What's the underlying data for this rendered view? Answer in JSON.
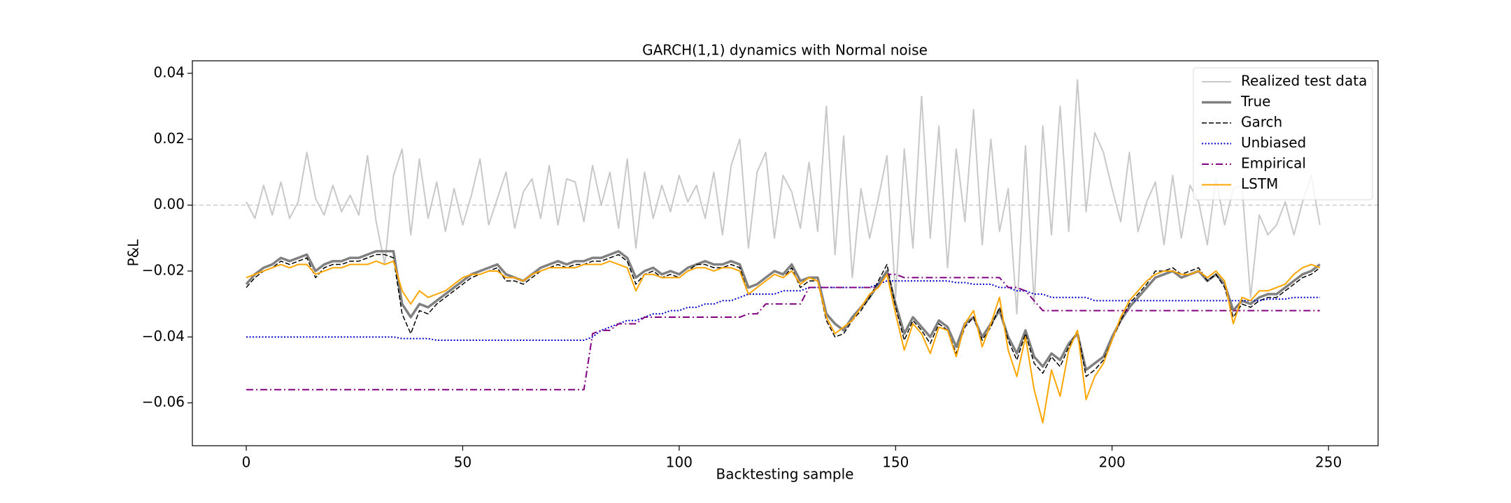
{
  "chart_data": {
    "type": "line",
    "title": "GARCH(1,1) dynamics with Normal noise",
    "xlabel": "Backtesting sample",
    "ylabel": "P&L",
    "xlim": [
      -12.45,
      261.45
    ],
    "ylim": [
      -0.073,
      0.0438
    ],
    "xticks": [
      0,
      50,
      100,
      150,
      200,
      250
    ],
    "yticks": [
      {
        "value": -0.06,
        "label": "−0.06"
      },
      {
        "value": -0.04,
        "label": "−0.04"
      },
      {
        "value": -0.02,
        "label": "−0.02"
      },
      {
        "value": 0,
        "label": "0.00"
      },
      0.02,
      0.04
    ],
    "hlines": [
      0
    ],
    "legend": "upper right",
    "x": [
      0,
      2,
      4,
      6,
      8,
      10,
      12,
      14,
      16,
      18,
      20,
      22,
      24,
      26,
      28,
      30,
      32,
      34,
      36,
      38,
      40,
      42,
      44,
      46,
      48,
      50,
      52,
      54,
      56,
      58,
      60,
      62,
      64,
      66,
      68,
      70,
      72,
      74,
      76,
      78,
      80,
      82,
      84,
      86,
      88,
      90,
      92,
      94,
      96,
      98,
      100,
      102,
      104,
      106,
      108,
      110,
      112,
      114,
      116,
      118,
      120,
      122,
      124,
      126,
      128,
      130,
      132,
      134,
      136,
      138,
      140,
      142,
      144,
      146,
      148,
      150,
      152,
      154,
      156,
      158,
      160,
      162,
      164,
      166,
      168,
      170,
      172,
      174,
      176,
      178,
      180,
      182,
      184,
      186,
      188,
      190,
      192,
      194,
      196,
      198,
      200,
      202,
      204,
      206,
      208,
      210,
      212,
      214,
      216,
      218,
      220,
      222,
      224,
      226,
      228,
      230,
      232,
      234,
      236,
      238,
      240,
      242,
      244,
      246,
      248
    ],
    "series": [
      {
        "name": "Realized test data",
        "color": "#c8c8c8",
        "linestyle": "solid",
        "values": [
          0.001,
          -0.004,
          0.006,
          -0.003,
          0.007,
          -0.004,
          0.001,
          0.016,
          0.002,
          -0.003,
          0.006,
          -0.002,
          0.003,
          -0.003,
          0.015,
          -0.005,
          -0.018,
          0.009,
          0.017,
          -0.009,
          0.014,
          -0.004,
          0.007,
          -0.008,
          0.005,
          -0.006,
          0.003,
          0.014,
          -0.006,
          0.002,
          0.01,
          -0.007,
          0.004,
          0.008,
          -0.004,
          0.012,
          -0.006,
          0.008,
          0.007,
          -0.005,
          0.012,
          0.0,
          0.01,
          -0.007,
          0.014,
          -0.013,
          0.01,
          -0.004,
          0.006,
          -0.002,
          0.009,
          0.001,
          0.006,
          -0.004,
          0.01,
          -0.009,
          0.012,
          0.02,
          -0.013,
          0.01,
          0.016,
          -0.01,
          0.009,
          0.004,
          -0.007,
          0.013,
          -0.008,
          0.03,
          -0.015,
          0.021,
          -0.022,
          0.005,
          -0.01,
          0.002,
          0.015,
          -0.028,
          0.017,
          -0.013,
          0.033,
          -0.01,
          0.024,
          -0.019,
          0.017,
          -0.005,
          0.029,
          -0.012,
          0.02,
          -0.008,
          0.005,
          -0.033,
          0.018,
          -0.03,
          0.024,
          -0.009,
          0.03,
          -0.008,
          0.038,
          -0.002,
          0.022,
          0.016,
          0.005,
          -0.005,
          0.016,
          -0.008,
          0.001,
          0.007,
          -0.012,
          0.009,
          -0.01,
          0.006,
          0.001,
          -0.012,
          0.008,
          -0.006,
          0.005,
          0.006,
          -0.028,
          -0.003,
          -0.009,
          -0.006,
          0.001,
          -0.009,
          0.001,
          0.009,
          -0.006
        ]
      },
      {
        "name": "True",
        "color": "#808080",
        "linestyle": "solid",
        "values": [
          -0.024,
          -0.021,
          -0.019,
          -0.018,
          -0.016,
          -0.017,
          -0.016,
          -0.015,
          -0.02,
          -0.018,
          -0.017,
          -0.017,
          -0.016,
          -0.016,
          -0.015,
          -0.014,
          -0.014,
          -0.014,
          -0.03,
          -0.034,
          -0.03,
          -0.031,
          -0.029,
          -0.027,
          -0.025,
          -0.023,
          -0.021,
          -0.02,
          -0.019,
          -0.018,
          -0.021,
          -0.022,
          -0.023,
          -0.021,
          -0.019,
          -0.018,
          -0.017,
          -0.018,
          -0.017,
          -0.017,
          -0.016,
          -0.016,
          -0.015,
          -0.014,
          -0.016,
          -0.022,
          -0.02,
          -0.019,
          -0.021,
          -0.02,
          -0.021,
          -0.019,
          -0.018,
          -0.017,
          -0.018,
          -0.018,
          -0.017,
          -0.018,
          -0.025,
          -0.024,
          -0.022,
          -0.02,
          -0.021,
          -0.018,
          -0.023,
          -0.022,
          -0.022,
          -0.033,
          -0.036,
          -0.038,
          -0.034,
          -0.031,
          -0.028,
          -0.024,
          -0.02,
          -0.03,
          -0.039,
          -0.034,
          -0.037,
          -0.04,
          -0.035,
          -0.037,
          -0.043,
          -0.036,
          -0.034,
          -0.04,
          -0.036,
          -0.032,
          -0.04,
          -0.045,
          -0.038,
          -0.046,
          -0.049,
          -0.045,
          -0.047,
          -0.042,
          -0.039,
          -0.05,
          -0.048,
          -0.046,
          -0.04,
          -0.035,
          -0.031,
          -0.028,
          -0.025,
          -0.022,
          -0.021,
          -0.02,
          -0.022,
          -0.021,
          -0.02,
          -0.023,
          -0.021,
          -0.024,
          -0.032,
          -0.029,
          -0.03,
          -0.028,
          -0.027,
          -0.027,
          -0.025,
          -0.023,
          -0.021,
          -0.02,
          -0.018
        ]
      },
      {
        "name": "Garch",
        "color": "#000000",
        "linestyle": "dashed",
        "values": [
          -0.025,
          -0.022,
          -0.02,
          -0.019,
          -0.017,
          -0.018,
          -0.017,
          -0.016,
          -0.022,
          -0.019,
          -0.018,
          -0.018,
          -0.017,
          -0.017,
          -0.016,
          -0.015,
          -0.015,
          -0.016,
          -0.033,
          -0.039,
          -0.032,
          -0.033,
          -0.03,
          -0.028,
          -0.026,
          -0.024,
          -0.022,
          -0.021,
          -0.02,
          -0.019,
          -0.023,
          -0.023,
          -0.024,
          -0.022,
          -0.02,
          -0.019,
          -0.018,
          -0.019,
          -0.018,
          -0.018,
          -0.017,
          -0.017,
          -0.016,
          -0.015,
          -0.017,
          -0.024,
          -0.021,
          -0.02,
          -0.022,
          -0.021,
          -0.022,
          -0.02,
          -0.018,
          -0.018,
          -0.019,
          -0.019,
          -0.018,
          -0.019,
          -0.027,
          -0.025,
          -0.023,
          -0.021,
          -0.022,
          -0.019,
          -0.025,
          -0.023,
          -0.023,
          -0.035,
          -0.04,
          -0.039,
          -0.035,
          -0.032,
          -0.028,
          -0.023,
          -0.018,
          -0.031,
          -0.041,
          -0.035,
          -0.038,
          -0.042,
          -0.036,
          -0.038,
          -0.045,
          -0.037,
          -0.034,
          -0.041,
          -0.037,
          -0.031,
          -0.041,
          -0.047,
          -0.039,
          -0.048,
          -0.051,
          -0.046,
          -0.049,
          -0.043,
          -0.038,
          -0.052,
          -0.05,
          -0.047,
          -0.041,
          -0.035,
          -0.03,
          -0.027,
          -0.024,
          -0.02,
          -0.02,
          -0.019,
          -0.021,
          -0.02,
          -0.019,
          -0.023,
          -0.021,
          -0.025,
          -0.034,
          -0.03,
          -0.031,
          -0.029,
          -0.028,
          -0.028,
          -0.026,
          -0.024,
          -0.022,
          -0.021,
          -0.019
        ]
      },
      {
        "name": "Unbiased",
        "color": "#0000cc",
        "linestyle": "dotted",
        "values": [
          -0.04,
          -0.04,
          -0.04,
          -0.04,
          -0.04,
          -0.04,
          -0.04,
          -0.04,
          -0.04,
          -0.04,
          -0.04,
          -0.04,
          -0.04,
          -0.04,
          -0.04,
          -0.04,
          -0.04,
          -0.04,
          -0.0405,
          -0.0405,
          -0.0405,
          -0.0405,
          -0.041,
          -0.041,
          -0.041,
          -0.041,
          -0.041,
          -0.041,
          -0.041,
          -0.041,
          -0.041,
          -0.041,
          -0.041,
          -0.041,
          -0.041,
          -0.041,
          -0.041,
          -0.041,
          -0.041,
          -0.041,
          -0.04,
          -0.038,
          -0.037,
          -0.036,
          -0.035,
          -0.035,
          -0.034,
          -0.033,
          -0.033,
          -0.032,
          -0.032,
          -0.031,
          -0.031,
          -0.03,
          -0.03,
          -0.029,
          -0.029,
          -0.028,
          -0.027,
          -0.027,
          -0.027,
          -0.027,
          -0.026,
          -0.026,
          -0.026,
          -0.025,
          -0.025,
          -0.025,
          -0.025,
          -0.025,
          -0.025,
          -0.025,
          -0.025,
          -0.024,
          -0.023,
          -0.023,
          -0.023,
          -0.023,
          -0.023,
          -0.023,
          -0.023,
          -0.023,
          -0.0235,
          -0.0235,
          -0.024,
          -0.024,
          -0.024,
          -0.025,
          -0.025,
          -0.026,
          -0.026,
          -0.027,
          -0.027,
          -0.028,
          -0.028,
          -0.028,
          -0.028,
          -0.028,
          -0.029,
          -0.029,
          -0.029,
          -0.029,
          -0.029,
          -0.029,
          -0.029,
          -0.029,
          -0.029,
          -0.029,
          -0.029,
          -0.029,
          -0.029,
          -0.029,
          -0.029,
          -0.029,
          -0.029,
          -0.029,
          -0.029,
          -0.029,
          -0.0285,
          -0.0285,
          -0.0285,
          -0.028,
          -0.028,
          -0.028,
          -0.028
        ]
      },
      {
        "name": "Empirical",
        "color": "#800080",
        "linestyle": "dashdot",
        "values": [
          -0.056,
          -0.056,
          -0.056,
          -0.056,
          -0.056,
          -0.056,
          -0.056,
          -0.056,
          -0.056,
          -0.056,
          -0.056,
          -0.056,
          -0.056,
          -0.056,
          -0.056,
          -0.056,
          -0.056,
          -0.056,
          -0.056,
          -0.056,
          -0.056,
          -0.056,
          -0.056,
          -0.056,
          -0.056,
          -0.056,
          -0.056,
          -0.056,
          -0.056,
          -0.056,
          -0.056,
          -0.056,
          -0.056,
          -0.056,
          -0.056,
          -0.056,
          -0.056,
          -0.056,
          -0.056,
          -0.056,
          -0.039,
          -0.038,
          -0.038,
          -0.036,
          -0.036,
          -0.036,
          -0.034,
          -0.034,
          -0.034,
          -0.034,
          -0.034,
          -0.034,
          -0.034,
          -0.034,
          -0.034,
          -0.034,
          -0.034,
          -0.034,
          -0.033,
          -0.033,
          -0.03,
          -0.03,
          -0.03,
          -0.03,
          -0.03,
          -0.025,
          -0.025,
          -0.025,
          -0.025,
          -0.025,
          -0.025,
          -0.025,
          -0.025,
          -0.025,
          -0.021,
          -0.021,
          -0.022,
          -0.022,
          -0.022,
          -0.022,
          -0.022,
          -0.022,
          -0.022,
          -0.022,
          -0.022,
          -0.022,
          -0.022,
          -0.022,
          -0.025,
          -0.025,
          -0.026,
          -0.029,
          -0.032,
          -0.032,
          -0.032,
          -0.032,
          -0.032,
          -0.032,
          -0.032,
          -0.032,
          -0.032,
          -0.032,
          -0.032,
          -0.032,
          -0.032,
          -0.032,
          -0.032,
          -0.032,
          -0.032,
          -0.032,
          -0.032,
          -0.032,
          -0.032,
          -0.032,
          -0.032,
          -0.032,
          -0.032,
          -0.032,
          -0.032,
          -0.032,
          -0.032,
          -0.032,
          -0.032,
          -0.032,
          -0.032
        ]
      },
      {
        "name": "LSTM",
        "color": "#ffa500",
        "linestyle": "solid",
        "values": [
          -0.022,
          -0.021,
          -0.02,
          -0.019,
          -0.018,
          -0.019,
          -0.018,
          -0.018,
          -0.021,
          -0.02,
          -0.019,
          -0.019,
          -0.018,
          -0.018,
          -0.018,
          -0.017,
          -0.018,
          -0.017,
          -0.026,
          -0.03,
          -0.026,
          -0.028,
          -0.027,
          -0.026,
          -0.024,
          -0.022,
          -0.021,
          -0.021,
          -0.02,
          -0.02,
          -0.022,
          -0.022,
          -0.023,
          -0.021,
          -0.02,
          -0.019,
          -0.019,
          -0.019,
          -0.019,
          -0.018,
          -0.018,
          -0.018,
          -0.017,
          -0.018,
          -0.019,
          -0.026,
          -0.021,
          -0.021,
          -0.022,
          -0.022,
          -0.022,
          -0.02,
          -0.019,
          -0.019,
          -0.02,
          -0.019,
          -0.019,
          -0.02,
          -0.027,
          -0.025,
          -0.023,
          -0.021,
          -0.022,
          -0.02,
          -0.024,
          -0.022,
          -0.023,
          -0.034,
          -0.039,
          -0.037,
          -0.035,
          -0.031,
          -0.027,
          -0.025,
          -0.021,
          -0.033,
          -0.044,
          -0.036,
          -0.039,
          -0.045,
          -0.037,
          -0.038,
          -0.046,
          -0.036,
          -0.032,
          -0.043,
          -0.036,
          -0.028,
          -0.044,
          -0.052,
          -0.04,
          -0.056,
          -0.066,
          -0.05,
          -0.058,
          -0.044,
          -0.038,
          -0.059,
          -0.052,
          -0.048,
          -0.041,
          -0.034,
          -0.029,
          -0.026,
          -0.023,
          -0.021,
          -0.02,
          -0.02,
          -0.021,
          -0.021,
          -0.02,
          -0.022,
          -0.02,
          -0.023,
          -0.036,
          -0.028,
          -0.029,
          -0.026,
          -0.026,
          -0.025,
          -0.024,
          -0.021,
          -0.019,
          -0.018,
          -0.019
        ]
      }
    ]
  }
}
